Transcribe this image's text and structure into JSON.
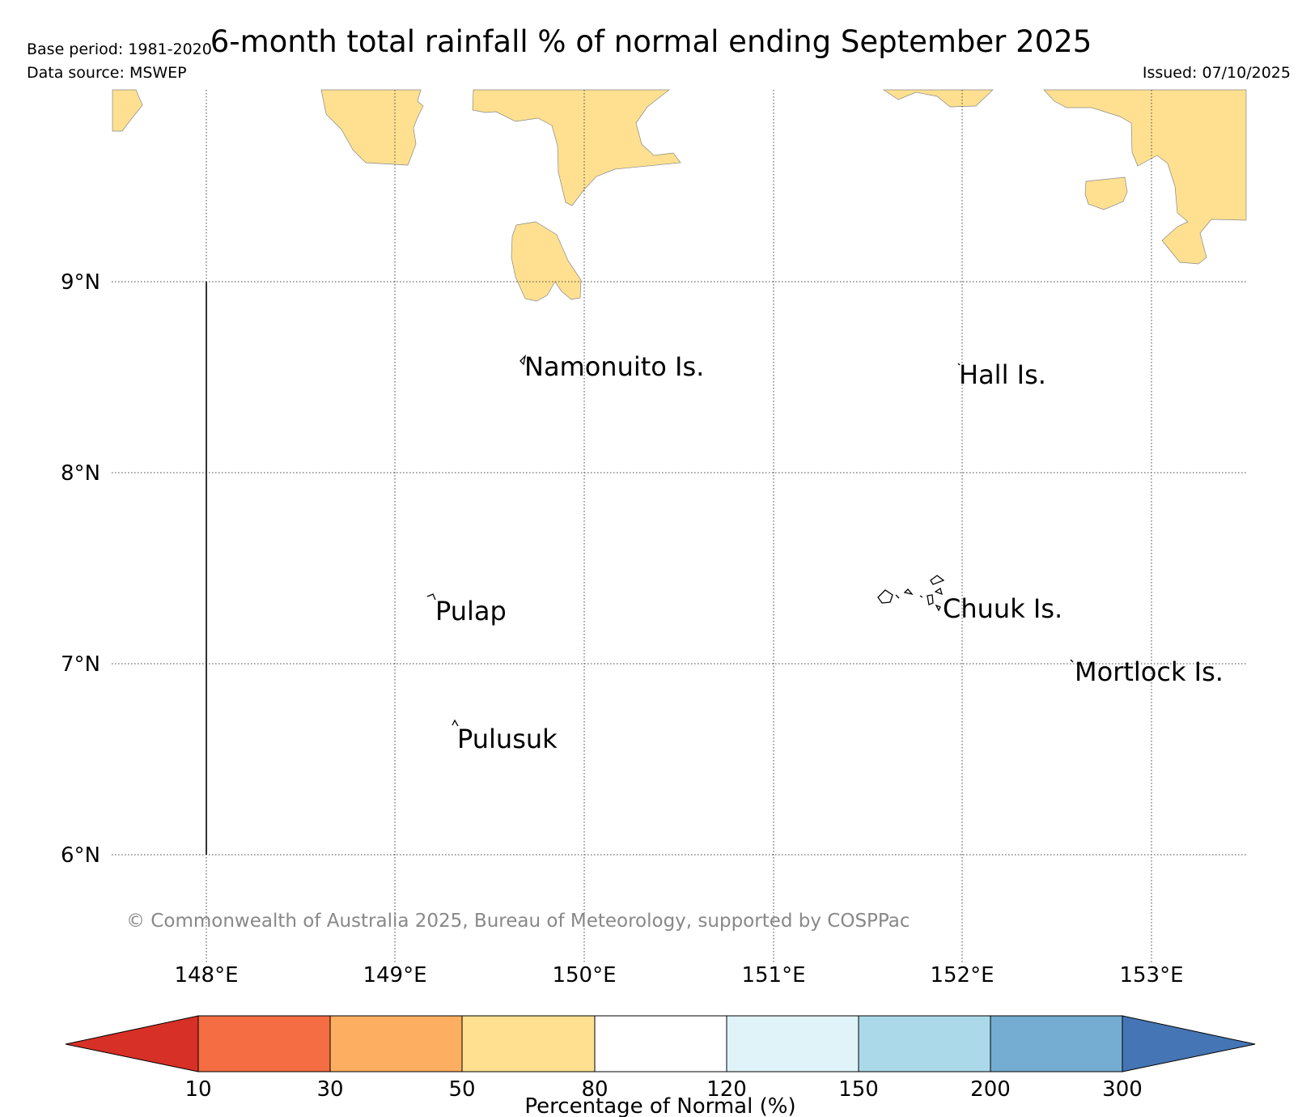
{
  "header": {
    "title": "6-month total rainfall % of normal ending September 2025",
    "base_period": "Base period: 1981-2020",
    "data_source": "Data source: MSWEP",
    "issued": "Issued: 07/10/2025"
  },
  "map": {
    "lat_labels": [
      "9°N",
      "8°N",
      "7°N",
      "6°N"
    ],
    "lon_labels": [
      "148°E",
      "149°E",
      "150°E",
      "151°E",
      "152°E",
      "153°E"
    ],
    "places": {
      "namonuito": "Namonuito Is.",
      "hall": "Hall Is.",
      "pulap": "Pulap",
      "chuuk": "Chuuk Is.",
      "mortlock": "Mortlock Is.",
      "pulusuk": "Pulusuk"
    },
    "copyright": "© Commonwealth of Australia 2025, Bureau of Meteorology, supported by COSPPac",
    "land_fill_color": "#fee090"
  },
  "colorbar": {
    "label": "Percentage of Normal (%)",
    "ticks": [
      "10",
      "30",
      "50",
      "80",
      "120",
      "150",
      "200",
      "300"
    ],
    "colors": {
      "lt10": "#d73027",
      "c10_30": "#f46d43",
      "c30_50": "#fdae61",
      "c50_80": "#fee090",
      "c80_120": "#ffffff",
      "c120_150": "#e0f3f8",
      "c150_200": "#abd9e9",
      "c200_300": "#74add1",
      "gt300": "#4575b4"
    }
  }
}
